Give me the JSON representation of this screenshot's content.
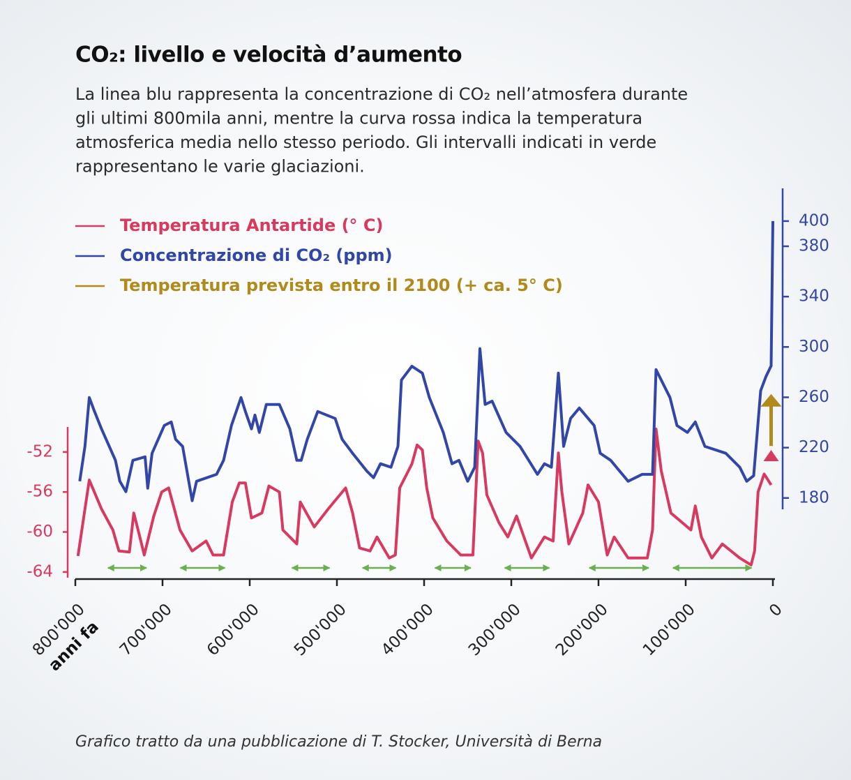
{
  "chart_data": {
    "type": "line",
    "title": "CO₂: livello e velocità d’aumento",
    "subtitle": [
      "La linea blu rappresenta la concentrazione di CO₂ nell’atmosfera durante",
      "gli ultimi 800mila anni, mentre la curva rossa indica la temperatura",
      "atmosferica media nello stesso periodo. Gli intervalli indicati in verde",
      "rappresentano le varie glaciazioni."
    ],
    "x_label": "anni fa",
    "source": "Grafico tratto da una pubblicazione di T. Stocker, Università di Berna",
    "xlim": [
      800000,
      0
    ],
    "xticks": [
      {
        "value": 800000,
        "label": "800'000"
      },
      {
        "value": 700000,
        "label": "700'000"
      },
      {
        "value": 600000,
        "label": "600'000"
      },
      {
        "value": 500000,
        "label": "500'000"
      },
      {
        "value": 400000,
        "label": "400'000"
      },
      {
        "value": 300000,
        "label": "300'000"
      },
      {
        "value": 200000,
        "label": "200'000"
      },
      {
        "value": 100000,
        "label": "100'000"
      },
      0
    ],
    "ylim": [
      -64.5,
      -49.5
    ],
    "yticks": [
      -52,
      -56,
      -60,
      -64
    ],
    "y2lim": [
      171,
      426
    ],
    "y2ticks": [
      400,
      380,
      340,
      300,
      260,
      220,
      180
    ],
    "series": [
      {
        "name": "Temperatura Antartide (° C)",
        "color": "#d8395f",
        "axis": "y",
        "x": [
          797000,
          789000,
          784000,
          770000,
          757000,
          750000,
          738000,
          733000,
          726000,
          721000,
          710000,
          701000,
          693000,
          680000,
          666000,
          650000,
          642000,
          630000,
          620000,
          612000,
          605000,
          598000,
          586000,
          578000,
          566000,
          562000,
          546000,
          542000,
          526000,
          510000,
          490000,
          482000,
          474000,
          462000,
          454000,
          440000,
          433000,
          428000,
          414000,
          408000,
          402000,
          397000,
          390000,
          374000,
          358000,
          344000,
          338000,
          333000,
          328000,
          314000,
          304000,
          294000,
          277000,
          262000,
          252000,
          246000,
          242000,
          234000,
          218000,
          212000,
          200000,
          190000,
          182000,
          166000,
          144000,
          138000,
          134000,
          128000,
          117000,
          94000,
          89000,
          82000,
          70000,
          58000,
          38000,
          25000,
          21000,
          17000,
          10000,
          2000
        ],
        "values": [
          -62.4,
          -57.7,
          -54.8,
          -57.7,
          -59.8,
          -61.9,
          -62.0,
          -58.1,
          -60.5,
          -62.3,
          -58.4,
          -56.0,
          -55.6,
          -59.8,
          -61.9,
          -60.9,
          -62.3,
          -62.3,
          -57.0,
          -55.1,
          -55.1,
          -58.6,
          -58.1,
          -55.4,
          -56.0,
          -59.8,
          -61.2,
          -57.0,
          -59.5,
          -57.7,
          -55.6,
          -58.1,
          -61.6,
          -61.9,
          -60.5,
          -62.6,
          -62.3,
          -55.6,
          -53.2,
          -51.3,
          -51.8,
          -55.6,
          -58.6,
          -60.9,
          -62.3,
          -62.3,
          -50.9,
          -52.1,
          -56.3,
          -59.1,
          -60.5,
          -58.4,
          -62.6,
          -60.5,
          -60.9,
          -52.1,
          -56.0,
          -61.2,
          -58.1,
          -55.3,
          -57.0,
          -62.3,
          -60.5,
          -62.6,
          -62.6,
          -59.8,
          -49.7,
          -53.9,
          -58.1,
          -59.8,
          -57.4,
          -60.5,
          -62.6,
          -61.2,
          -62.6,
          -63.3,
          -61.9,
          -56.0,
          -54.2,
          -55.3
        ]
      },
      {
        "name": "Concentrazione di CO₂ (ppm)",
        "color": "#3246a8",
        "axis": "y2",
        "x": [
          795000,
          789000,
          784000,
          778000,
          770000,
          754000,
          749000,
          742000,
          734000,
          720000,
          717000,
          712000,
          698000,
          690000,
          685000,
          677000,
          666000,
          661000,
          638000,
          630000,
          621000,
          610000,
          605000,
          598000,
          594000,
          589000,
          581000,
          566000,
          554000,
          546000,
          541000,
          534000,
          522000,
          502000,
          494000,
          482000,
          466000,
          458000,
          450000,
          438000,
          430000,
          426000,
          414000,
          402000,
          394000,
          378000,
          368000,
          360000,
          350000,
          342000,
          336000,
          330000,
          322000,
          306000,
          290000,
          270000,
          262000,
          254000,
          246000,
          240000,
          232000,
          222000,
          205000,
          198000,
          186000,
          166000,
          150000,
          138000,
          134000,
          118000,
          110000,
          98000,
          89000,
          78000,
          54000,
          38000,
          30000,
          22000,
          14000,
          8000,
          2000,
          0
        ],
        "values": [
          193.3,
          221.0,
          259.8,
          248.7,
          234.9,
          209.9,
          193.3,
          185.0,
          209.9,
          212.7,
          187.8,
          215.5,
          237.6,
          240.4,
          226.6,
          221.0,
          177.8,
          193.3,
          198.8,
          209.9,
          237.6,
          259.8,
          248.7,
          234.9,
          245.9,
          232.1,
          254.3,
          254.3,
          234.9,
          209.9,
          209.9,
          226.6,
          248.7,
          243.2,
          226.6,
          215.5,
          201.6,
          196.1,
          207.2,
          204.4,
          221.0,
          273.7,
          284.7,
          279.2,
          259.8,
          232.1,
          207.2,
          209.9,
          193.3,
          204.4,
          298.6,
          254.3,
          257.0,
          232.1,
          221.0,
          198.8,
          207.2,
          204.4,
          279.2,
          221.0,
          243.2,
          251.5,
          237.6,
          215.5,
          209.9,
          193.3,
          198.8,
          198.8,
          282.0,
          259.8,
          237.6,
          232.1,
          240.4,
          221.0,
          215.5,
          204.4,
          193.3,
          197.7,
          265.3,
          276.4,
          285.0,
          400.0
        ]
      }
    ],
    "projection": {
      "name": "Temperatura prevista entro il 2100 (+ ca. 5° C)",
      "color": "#b08a1a",
      "x": 2000,
      "from": -51.4,
      "to": -46.2
    },
    "glaciations": {
      "color": "#6ab04c",
      "intervals": [
        [
          765000,
          716000
        ],
        [
          682000,
          626000
        ],
        [
          554000,
          506000
        ],
        [
          473000,
          430000
        ],
        [
          390000,
          344000
        ],
        [
          310000,
          254000
        ],
        [
          213000,
          140000
        ],
        [
          117000,
          22000
        ]
      ]
    }
  }
}
